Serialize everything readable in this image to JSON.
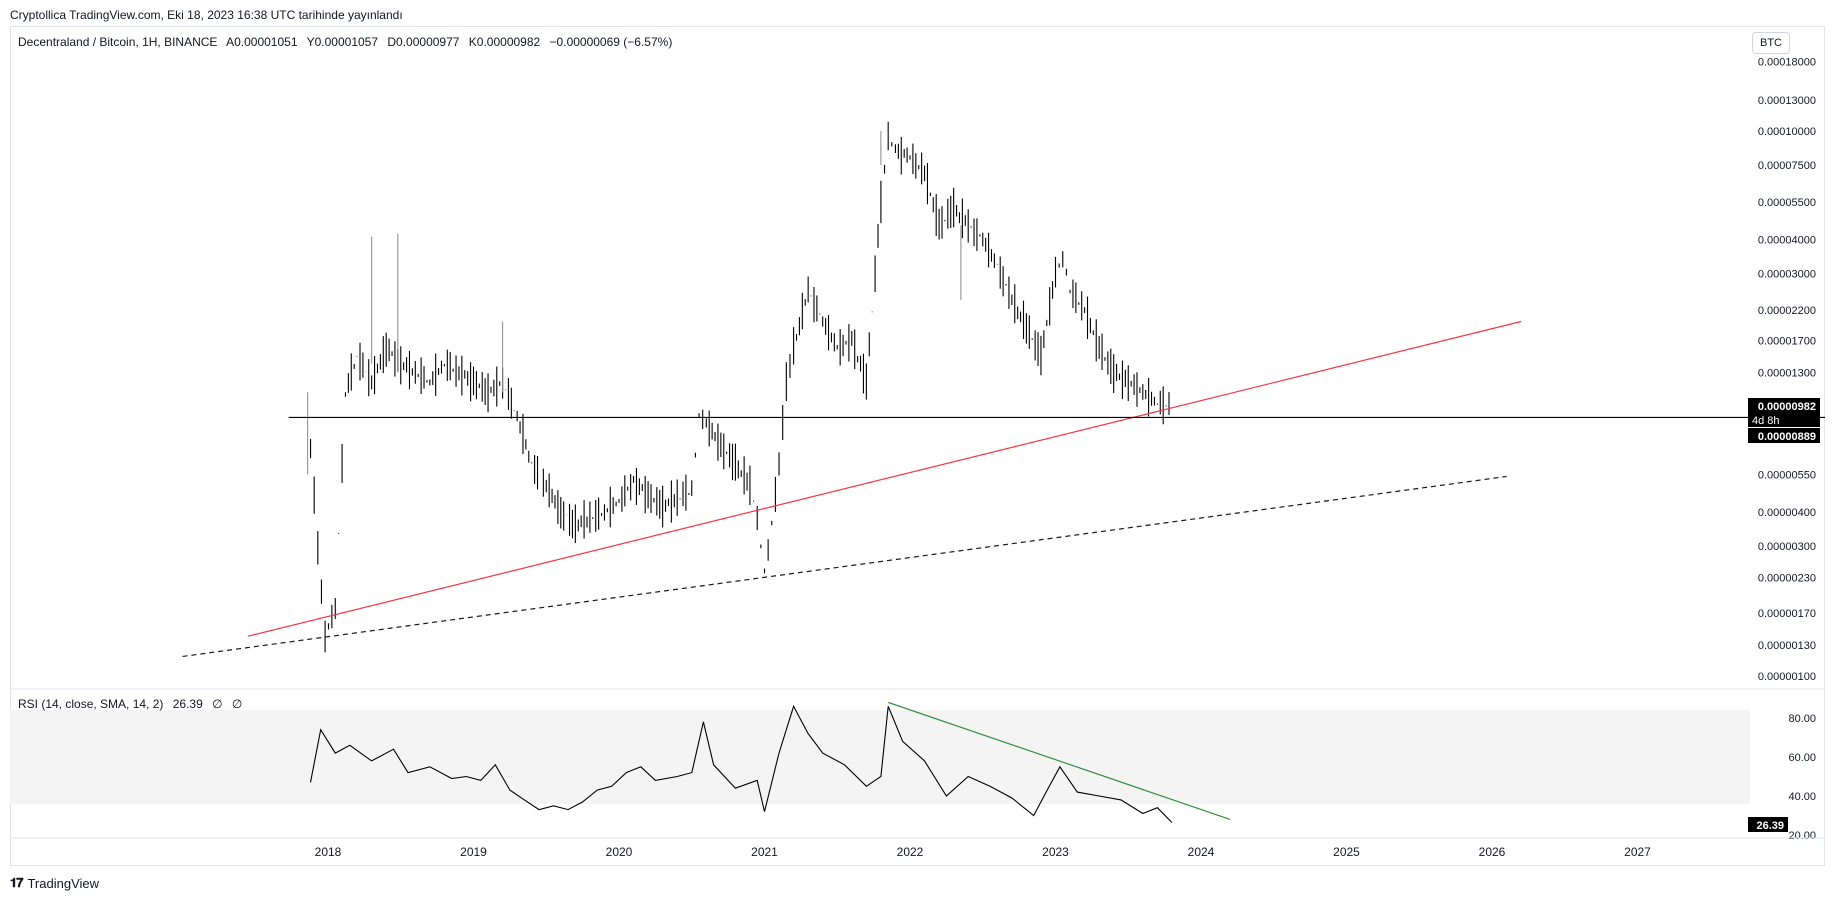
{
  "header": {
    "attribution": "Cryptollica TradingView.com, Eki 18, 2023 16:38 UTC tarihinde yayınlandı"
  },
  "symbol_line": {
    "name": "Decentraland / Bitcoin, 1H, BINANCE",
    "open": "A0.00001051",
    "high": "Y0.00001057",
    "low": "D0.00000977",
    "close": "K0.00000982",
    "change": "−0.00000069 (−6.57%)"
  },
  "currency_badge": "BTC",
  "price_axis_labels": [
    {
      "value": 0.00018,
      "label": "0.00018000"
    },
    {
      "value": 0.00013,
      "label": "0.00013000"
    },
    {
      "value": 0.0001,
      "label": "0.00010000"
    },
    {
      "value": 7.5e-05,
      "label": "0.00007500"
    },
    {
      "value": 5.5e-05,
      "label": "0.00005500"
    },
    {
      "value": 4e-05,
      "label": "0.00004000"
    },
    {
      "value": 3e-05,
      "label": "0.00003000"
    },
    {
      "value": 2.2e-05,
      "label": "0.00002200"
    },
    {
      "value": 1.7e-05,
      "label": "0.00001700"
    },
    {
      "value": 1.3e-05,
      "label": "0.00001300"
    },
    {
      "value": 5.5e-06,
      "label": "0.00000550"
    },
    {
      "value": 4e-06,
      "label": "0.00000400"
    },
    {
      "value": 3e-06,
      "label": "0.00000300"
    },
    {
      "value": 2.3e-06,
      "label": "0.00000230"
    },
    {
      "value": 1.7e-06,
      "label": "0.00000170"
    },
    {
      "value": 1.3e-06,
      "label": "0.00000130"
    },
    {
      "value": 1e-06,
      "label": "0.00000100"
    }
  ],
  "price_tags": {
    "last_price": "0.00000982",
    "countdown": "4d 8h",
    "hline_price": "0.00000889"
  },
  "rsi": {
    "legend": "RSI (14, close, SMA, 14, 2)",
    "value": "26.39",
    "na1": "∅",
    "na2": "∅",
    "axis_labels": [
      {
        "value": 80,
        "label": "80.00"
      },
      {
        "value": 60,
        "label": "60.00"
      },
      {
        "value": 40,
        "label": "40.00"
      },
      {
        "value": 20,
        "label": "20.00"
      }
    ],
    "current_tag": "26.39"
  },
  "time_axis": [
    "2018",
    "2019",
    "2020",
    "2021",
    "2022",
    "2023",
    "2024",
    "2025",
    "2026",
    "2027"
  ],
  "footer": {
    "brand": "TradingView"
  },
  "colors": {
    "candles": "#000000",
    "red_trendline": "#f23645",
    "dashed_trendline": "#131722",
    "rsi_trendline": "#388e3c",
    "rsi_band": "#f4f4f4"
  },
  "chart_data": [
    {
      "type": "line",
      "title": "Decentraland / Bitcoin, 1H, BINANCE",
      "scale": "log",
      "ylim": [
        1e-06,
        0.00019
      ],
      "x": [
        2017.88,
        2017.93,
        2017.98,
        2018.05,
        2018.12,
        2018.2,
        2018.3,
        2018.4,
        2018.5,
        2018.6,
        2018.7,
        2018.8,
        2018.9,
        2019.0,
        2019.1,
        2019.2,
        2019.3,
        2019.4,
        2019.5,
        2019.6,
        2019.7,
        2019.8,
        2019.9,
        2020.0,
        2020.1,
        2020.2,
        2020.3,
        2020.4,
        2020.5,
        2020.55,
        2020.6,
        2020.7,
        2020.8,
        2020.9,
        2020.95,
        2021.0,
        2021.05,
        2021.1,
        2021.15,
        2021.2,
        2021.3,
        2021.4,
        2021.5,
        2021.6,
        2021.7,
        2021.8,
        2021.85,
        2021.9,
        2022.0,
        2022.1,
        2022.2,
        2022.3,
        2022.4,
        2022.5,
        2022.6,
        2022.7,
        2022.8,
        2022.9,
        2023.0,
        2023.05,
        2023.1,
        2023.2,
        2023.3,
        2023.4,
        2023.5,
        2023.6,
        2023.7,
        2023.8
      ],
      "series": [
        {
          "values": [
            7e-06,
            3e-06,
            1.4e-06,
            1.8e-06,
            1.1e-05,
            1.5e-05,
            1.2e-05,
            1.6e-05,
            1.4e-05,
            1.3e-05,
            1.2e-05,
            1.4e-05,
            1.3e-05,
            1.2e-05,
            1.1e-05,
            1.2e-05,
            9e-06,
            6e-06,
            5e-06,
            4e-06,
            3.6e-06,
            3.8e-06,
            4e-06,
            4.4e-06,
            5.2e-06,
            4.6e-06,
            4.2e-06,
            4.5e-06,
            4.8e-06,
            9e-06,
            8.5e-06,
            7e-06,
            6e-06,
            5e-06,
            3.8e-06,
            2.4e-06,
            3.6e-06,
            6e-06,
            1.2e-05,
            1.6e-05,
            2.6e-05,
            2e-05,
            1.6e-05,
            1.7e-05,
            1.2e-05,
            5.5e-05,
            9.5e-05,
            8.5e-05,
            8e-05,
            7e-05,
            4.5e-05,
            5.2e-05,
            4.5e-05,
            4e-05,
            3.2e-05,
            2.4e-05,
            1.9e-05,
            1.5e-05,
            3e-05,
            3.4e-05,
            2.6e-05,
            2.2e-05,
            1.6e-05,
            1.3e-05,
            1.2e-05,
            1.1e-05,
            1e-05,
            9.82e-06
          ]
        }
      ],
      "trendlines": [
        {
          "kind": "red-solid",
          "from": [
            2017.45,
            1.4e-06
          ],
          "to": [
            2026.2,
            2e-05
          ]
        },
        {
          "kind": "dashed",
          "from": [
            2017.0,
            1.18e-06
          ],
          "to": [
            2026.1,
            5.4e-06
          ]
        },
        {
          "kind": "horizontal",
          "price": 8.89e-06,
          "from_x": 2017.73
        }
      ]
    },
    {
      "type": "line",
      "title": "RSI (14, close, SMA, 14, 2)",
      "ylim": [
        20,
        90
      ],
      "x": [
        2017.88,
        2017.95,
        2018.05,
        2018.15,
        2018.3,
        2018.45,
        2018.55,
        2018.7,
        2018.85,
        2018.95,
        2019.05,
        2019.15,
        2019.25,
        2019.35,
        2019.45,
        2019.55,
        2019.65,
        2019.75,
        2019.85,
        2019.95,
        2020.05,
        2020.15,
        2020.25,
        2020.4,
        2020.5,
        2020.58,
        2020.65,
        2020.8,
        2020.95,
        2021.0,
        2021.1,
        2021.2,
        2021.3,
        2021.4,
        2021.55,
        2021.7,
        2021.8,
        2021.85,
        2021.95,
        2022.1,
        2022.25,
        2022.4,
        2022.55,
        2022.7,
        2022.85,
        2022.95,
        2023.03,
        2023.15,
        2023.3,
        2023.45,
        2023.6,
        2023.7,
        2023.8
      ],
      "series": [
        {
          "values": [
            47,
            74,
            62,
            66,
            58,
            64,
            52,
            55,
            49,
            50,
            48,
            56,
            43,
            38,
            33,
            35,
            33,
            37,
            43,
            45,
            52,
            55,
            48,
            50,
            52,
            78,
            56,
            44,
            48,
            32,
            62,
            86,
            72,
            62,
            56,
            45,
            50,
            86,
            68,
            58,
            40,
            50,
            45,
            39,
            30,
            44,
            55,
            42,
            40,
            38,
            31,
            34,
            26.39
          ]
        }
      ],
      "trendlines": [
        {
          "kind": "green-solid",
          "from": [
            2021.85,
            88
          ],
          "to": [
            2024.2,
            28
          ]
        }
      ]
    }
  ]
}
